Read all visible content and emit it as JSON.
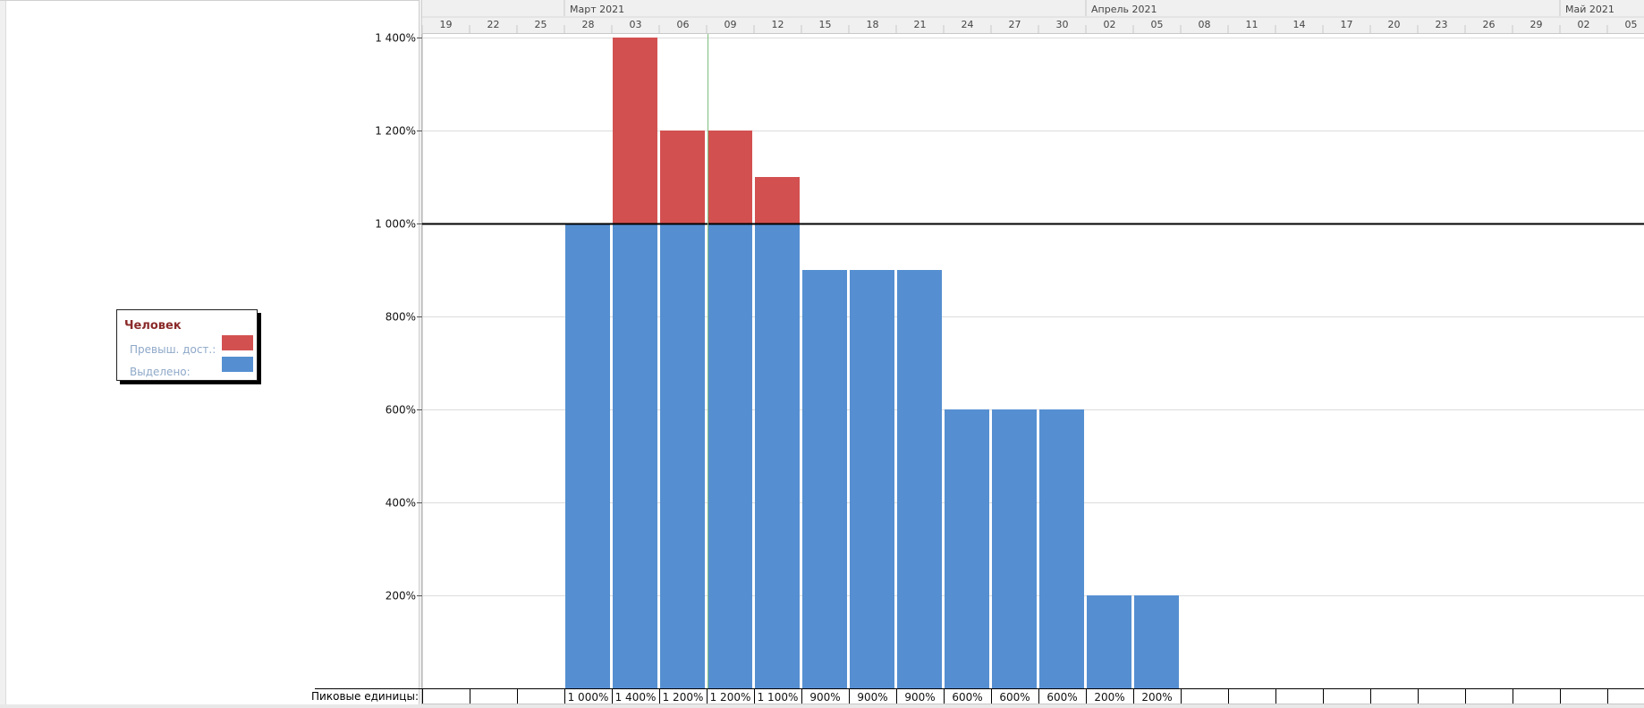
{
  "legend": {
    "title": "Человек",
    "items": [
      {
        "label": "Превыш. дост.:",
        "color": "#d35050"
      },
      {
        "label": "Выделено:",
        "color": "#558fd1"
      }
    ]
  },
  "peak_units_label": "Пиковые единицы:",
  "chart_data": {
    "type": "bar",
    "stacked": true,
    "timescale": {
      "months": [
        {
          "label": "Март 2021",
          "start_col": 3
        },
        {
          "label": "Апрель 2021",
          "start_col": 14
        },
        {
          "label": "Май 2021",
          "start_col": 24
        }
      ],
      "days": [
        "19",
        "22",
        "25",
        "28",
        "03",
        "06",
        "09",
        "12",
        "15",
        "18",
        "21",
        "24",
        "27",
        "30",
        "02",
        "05",
        "08",
        "11",
        "14",
        "17",
        "20",
        "23",
        "26",
        "29",
        "02",
        "05"
      ]
    },
    "categories": [
      "19",
      "22",
      "25",
      "28",
      "03",
      "06",
      "09",
      "12",
      "15",
      "18",
      "21",
      "24",
      "27",
      "30",
      "02",
      "05",
      "08",
      "11",
      "14",
      "17",
      "20",
      "23",
      "26",
      "29",
      "02",
      "05"
    ],
    "series": [
      {
        "name": "Выделено",
        "color": "#558fd1",
        "values": [
          0,
          0,
          0,
          1000,
          1000,
          1000,
          1000,
          1000,
          900,
          900,
          900,
          600,
          600,
          600,
          200,
          200,
          0,
          0,
          0,
          0,
          0,
          0,
          0,
          0,
          0,
          0
        ]
      },
      {
        "name": "Превыш. дост.",
        "color": "#d35050",
        "values": [
          0,
          0,
          0,
          0,
          400,
          200,
          200,
          100,
          0,
          0,
          0,
          0,
          0,
          0,
          0,
          0,
          0,
          0,
          0,
          0,
          0,
          0,
          0,
          0,
          0,
          0
        ]
      }
    ],
    "peak_units": [
      "",
      "",
      "",
      "1 000%",
      "1 400%",
      "1 200%",
      "1 200%",
      "1 100%",
      "900%",
      "900%",
      "900%",
      "600%",
      "600%",
      "600%",
      "200%",
      "200%",
      "",
      "",
      "",
      "",
      "",
      "",
      "",
      "",
      "",
      ""
    ],
    "yticks": [
      {
        "value": 200,
        "label": "200%"
      },
      {
        "value": 400,
        "label": "400%"
      },
      {
        "value": 600,
        "label": "600%"
      },
      {
        "value": 800,
        "label": "800%"
      },
      {
        "value": 1000,
        "label": "1 000%"
      },
      {
        "value": 1200,
        "label": "1 200%"
      },
      {
        "value": 1400,
        "label": "1 400%"
      }
    ],
    "ylim": [
      0,
      1400
    ],
    "max_units": 1000,
    "grid": true
  }
}
